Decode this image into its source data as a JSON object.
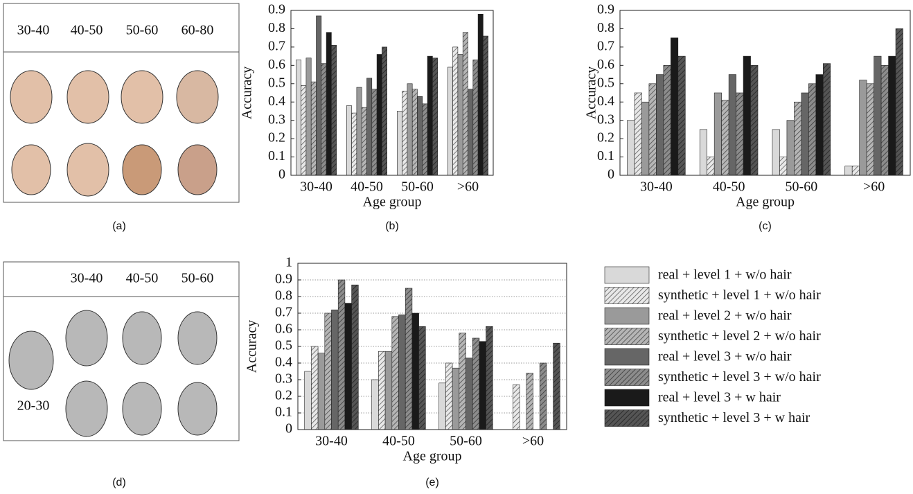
{
  "panel_a": {
    "headers": [
      "30-40",
      "40-50",
      "50-60",
      "60-80"
    ],
    "label": "(a)"
  },
  "panel_d": {
    "headers": [
      "30-40",
      "40-50",
      "50-60"
    ],
    "row_label": "20-30",
    "label": "(d)"
  },
  "chart_data": [
    {
      "type": "bar",
      "panel_label": "(b)",
      "x_label": "Age group",
      "y_label": "Accuracy",
      "categories": [
        "30-40",
        "40-50",
        "50-60",
        ">60"
      ],
      "ylim": [
        0,
        0.9
      ],
      "yticks": [
        0,
        0.1,
        0.2,
        0.3,
        0.4,
        0.5,
        0.6,
        0.7,
        0.8,
        0.9
      ],
      "grid": false,
      "series": [
        {
          "color": "#d9d9d9",
          "hatch": false,
          "values": [
            0.63,
            0.38,
            0.35,
            0.59
          ]
        },
        {
          "color": "#e8e8e8",
          "hatch": true,
          "values": [
            0.49,
            0.34,
            0.46,
            0.7
          ]
        },
        {
          "color": "#9a9a9a",
          "hatch": false,
          "values": [
            0.64,
            0.48,
            0.5,
            0.66
          ]
        },
        {
          "color": "#b5b5b5",
          "hatch": true,
          "values": [
            0.51,
            0.37,
            0.47,
            0.78
          ]
        },
        {
          "color": "#666666",
          "hatch": false,
          "values": [
            0.87,
            0.53,
            0.43,
            0.47
          ]
        },
        {
          "color": "#8c8c8c",
          "hatch": true,
          "values": [
            0.61,
            0.47,
            0.39,
            0.63
          ]
        },
        {
          "color": "#1a1a1a",
          "hatch": false,
          "values": [
            0.78,
            0.66,
            0.65,
            0.88
          ]
        },
        {
          "color": "#555555",
          "hatch": true,
          "values": [
            0.71,
            0.7,
            0.64,
            0.76
          ]
        }
      ]
    },
    {
      "type": "bar",
      "panel_label": "(c)",
      "x_label": "Age group",
      "y_label": "Accuracy",
      "categories": [
        "30-40",
        "40-50",
        "50-60",
        ">60"
      ],
      "ylim": [
        0,
        0.9
      ],
      "yticks": [
        0,
        0.1,
        0.2,
        0.3,
        0.4,
        0.5,
        0.6,
        0.7,
        0.8,
        0.9
      ],
      "grid": false,
      "series": [
        {
          "color": "#d9d9d9",
          "hatch": false,
          "values": [
            0.3,
            0.25,
            0.25,
            0.05
          ]
        },
        {
          "color": "#e8e8e8",
          "hatch": true,
          "values": [
            0.45,
            0.1,
            0.1,
            0.05
          ]
        },
        {
          "color": "#9a9a9a",
          "hatch": false,
          "values": [
            0.4,
            0.45,
            0.3,
            0.52
          ]
        },
        {
          "color": "#b5b5b5",
          "hatch": true,
          "values": [
            0.5,
            0.41,
            0.4,
            0.5
          ]
        },
        {
          "color": "#666666",
          "hatch": false,
          "values": [
            0.55,
            0.55,
            0.45,
            0.65
          ]
        },
        {
          "color": "#8c8c8c",
          "hatch": true,
          "values": [
            0.6,
            0.45,
            0.5,
            0.6
          ]
        },
        {
          "color": "#1a1a1a",
          "hatch": false,
          "values": [
            0.75,
            0.65,
            0.55,
            0.65
          ]
        },
        {
          "color": "#555555",
          "hatch": true,
          "values": [
            0.65,
            0.6,
            0.61,
            0.8
          ]
        }
      ]
    },
    {
      "type": "bar",
      "panel_label": "(e)",
      "x_label": "Age group",
      "y_label": "Accuracy",
      "categories": [
        "30-40",
        "40-50",
        "50-60",
        ">60"
      ],
      "ylim": [
        0,
        1
      ],
      "yticks": [
        0,
        0.1,
        0.2,
        0.3,
        0.4,
        0.5,
        0.6,
        0.7,
        0.8,
        0.9,
        1
      ],
      "grid": true,
      "series": [
        {
          "name": "real + level 1 + w/o hair",
          "color": "#d9d9d9",
          "hatch": false,
          "values": [
            0.35,
            0.3,
            0.28,
            null
          ]
        },
        {
          "name": "synthetic + level 1 + w/o hair",
          "color": "#e8e8e8",
          "hatch": true,
          "values": [
            0.5,
            0.47,
            0.4,
            0.27
          ]
        },
        {
          "name": "real + level 2 + w/o hair",
          "color": "#9a9a9a",
          "hatch": false,
          "values": [
            0.46,
            0.47,
            0.37,
            null
          ]
        },
        {
          "name": "synthetic + level 2 + w/o hair",
          "color": "#b5b5b5",
          "hatch": true,
          "values": [
            0.7,
            0.68,
            0.58,
            0.34
          ]
        },
        {
          "name": "real + level 3 + w/o hair",
          "color": "#666666",
          "hatch": false,
          "values": [
            0.72,
            0.69,
            0.43,
            null
          ]
        },
        {
          "name": "synthetic + level 3 + w/o hair",
          "color": "#8c8c8c",
          "hatch": true,
          "values": [
            0.9,
            0.85,
            0.55,
            0.4
          ]
        },
        {
          "name": "real + level 3 + w hair",
          "color": "#1a1a1a",
          "hatch": false,
          "values": [
            0.76,
            0.7,
            0.53,
            null
          ]
        },
        {
          "name": "synthetic + level 3 + w hair",
          "color": "#555555",
          "hatch": true,
          "values": [
            0.87,
            0.62,
            0.62,
            0.52
          ]
        }
      ]
    }
  ]
}
